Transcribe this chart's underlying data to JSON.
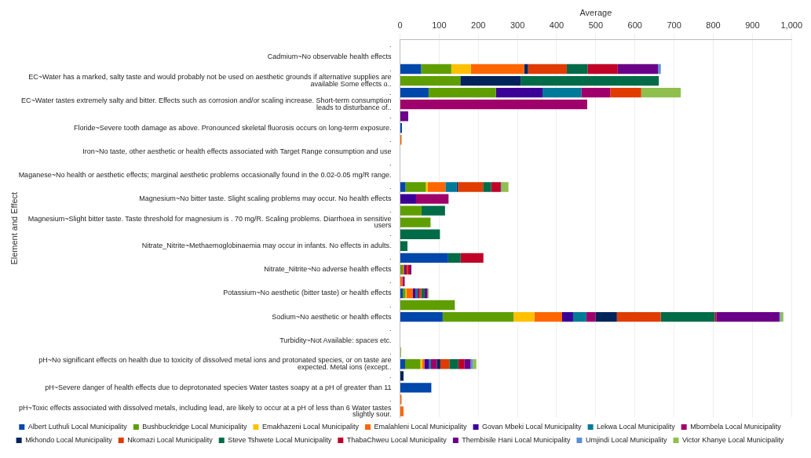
{
  "chart_data": {
    "type": "bar",
    "orientation": "horizontal",
    "stacked": true,
    "xlabel": "Average",
    "ylabel": "Element and Effect",
    "legend": "bottom",
    "grid": "x",
    "xlim": [
      0,
      1000
    ],
    "xticks": [
      0,
      100,
      200,
      300,
      400,
      500,
      600,
      700,
      800,
      900,
      {
        "value": 1000,
        "label": "1,000"
      }
    ],
    "categories": [
      ".",
      "Cadmium~No observable health effects",
      ".",
      "EC~Water has a marked, salty taste and would probably not be used on aesthetic grounds if alternative supplies are available Some effects o..",
      ".",
      "EC~Water tastes extremely salty and bitter. Effects such as corrosion and/or scaling increase. Short-term consumption leads to disturbance of..",
      ".",
      "Floride~Severe tooth damage as above. Pronounced skeletal fluorosis occurs on long-term exposure.",
      ".",
      "Iron~No taste, other aesthetic or health effects associated with Target Range consumption and use",
      ".",
      "Maganese~No health or aesthetic effects; marginal aesthetic problems occasionally found in the 0.02-0.05 mg/R range.",
      ".",
      "Magnesium~No bitter taste. Slight scaling problems may occur. No health effects",
      ".",
      "Magnesium~Slight bitter taste. Taste threshold for magnesium is . 70 mg/R. Scaling problems. Diarrhoea in sensitive users",
      ".",
      "Nitrate_Nitrite~Methaemoglobinaemia may occur in infants. No effects in adults.",
      ".",
      "Nitrate_Nitrite~No adverse health effects",
      ".",
      "Potassium~No aesthetic (bitter taste) or health effects",
      ".",
      "Sodium~No aesthetic or health effects",
      ".",
      "Turbidity~Not Available: spaces etc.",
      ".",
      "pH~No significant effects on health due to toxicity of dissolved metal ions and protonated species, or on taste are expected. Metal ions (except..",
      ".",
      "pH~Severe danger of health effects due to deprotonated species Water tastes soapy at a pH of greater than 11",
      ".",
      "pH~Toxic effects associated with dissolved metals, including lead, are likely to occur at a pH of less than 6 Water tastes slightly sour."
    ],
    "series": [
      {
        "name": "Albert Luthuli Local Municipality",
        "color": "#0047ab",
        "values": [
          null,
          null,
          54,
          null,
          73,
          null,
          null,
          5,
          null,
          null,
          null,
          null,
          14,
          null,
          null,
          null,
          null,
          null,
          123,
          null,
          null,
          7,
          null,
          109,
          null,
          null,
          null,
          13,
          null,
          80,
          null,
          null
        ]
      },
      {
        "name": "Bushbuckridge Local Municipality",
        "color": "#5f9e00",
        "values": [
          null,
          null,
          77,
          154,
          172,
          null,
          null,
          null,
          null,
          null,
          null,
          null,
          52,
          null,
          55,
          78,
          null,
          null,
          null,
          7,
          null,
          7,
          140,
          181,
          null,
          null,
          null,
          39,
          null,
          null,
          null,
          null
        ]
      },
      {
        "name": "Emakhazeni Local Municipality",
        "color": "#ffc000",
        "values": [
          null,
          null,
          50,
          null,
          null,
          null,
          null,
          null,
          null,
          null,
          null,
          null,
          5,
          null,
          null,
          null,
          null,
          null,
          null,
          null,
          null,
          3,
          null,
          53,
          null,
          null,
          null,
          5,
          null,
          null,
          null,
          null
        ]
      },
      {
        "name": "Emalahleni Local Municipality",
        "color": "#ff6600",
        "values": [
          null,
          null,
          136,
          null,
          null,
          null,
          null,
          null,
          4,
          null,
          null,
          null,
          45,
          null,
          null,
          null,
          null,
          null,
          null,
          3,
          6,
          16,
          null,
          71,
          null,
          null,
          null,
          5,
          null,
          null,
          4,
          9
        ]
      },
      {
        "name": "Govan Mbeki Local Municipality",
        "color": "#3b0096",
        "values": [
          null,
          null,
          null,
          null,
          119,
          null,
          null,
          null,
          null,
          null,
          null,
          null,
          null,
          41,
          null,
          null,
          null,
          null,
          null,
          3,
          null,
          7,
          null,
          28,
          null,
          null,
          null,
          12,
          null,
          null,
          null,
          null
        ]
      },
      {
        "name": "Lekwa Local Municipality",
        "color": "#007a99",
        "values": [
          null,
          null,
          null,
          null,
          99,
          null,
          null,
          null,
          null,
          null,
          null,
          null,
          29,
          null,
          null,
          null,
          null,
          null,
          null,
          null,
          null,
          5,
          null,
          34,
          null,
          null,
          null,
          5,
          null,
          null,
          null,
          null
        ]
      },
      {
        "name": "Mbombela Local Municipality",
        "color": "#a0006a",
        "values": [
          null,
          null,
          null,
          null,
          74,
          478,
          null,
          null,
          null,
          null,
          null,
          null,
          null,
          83,
          null,
          null,
          null,
          null,
          null,
          4,
          6,
          4,
          null,
          23,
          null,
          null,
          null,
          15,
          null,
          null,
          null,
          null
        ]
      },
      {
        "name": "Mkhondo Local Municipality",
        "color": "#00235a",
        "values": [
          null,
          null,
          10,
          155,
          null,
          null,
          null,
          null,
          null,
          null,
          null,
          null,
          3,
          null,
          null,
          null,
          null,
          null,
          null,
          null,
          null,
          null,
          null,
          55,
          null,
          null,
          null,
          9,
          9,
          null,
          null,
          null
        ]
      },
      {
        "name": "Nkomazi Local Municipality",
        "color": "#e03c00",
        "values": [
          null,
          null,
          99,
          null,
          79,
          null,
          null,
          null,
          null,
          null,
          null,
          null,
          64,
          null,
          null,
          null,
          null,
          null,
          null,
          4,
          null,
          5,
          null,
          112,
          null,
          null,
          null,
          23,
          null,
          null,
          null,
          null
        ]
      },
      {
        "name": "Steve Tshwete Local Municipality",
        "color": "#006b47",
        "values": [
          null,
          null,
          53,
          352,
          null,
          null,
          null,
          null,
          null,
          null,
          null,
          null,
          21,
          null,
          60,
          null,
          102,
          19,
          32,
          null,
          null,
          9,
          null,
          138,
          null,
          null,
          null,
          23,
          null,
          null,
          null,
          null
        ]
      },
      {
        "name": "ThabaChweu Local Municipality",
        "color": "#c00027",
        "values": [
          null,
          null,
          77,
          null,
          null,
          null,
          null,
          null,
          null,
          null,
          null,
          null,
          23,
          null,
          null,
          null,
          null,
          null,
          58,
          4,
          null,
          null,
          null,
          4,
          null,
          null,
          null,
          15,
          null,
          null,
          null,
          null
        ]
      },
      {
        "name": "Thembisile Hani Local Municipality",
        "color": "#6a0088",
        "values": [
          null,
          null,
          103,
          null,
          null,
          null,
          21,
          null,
          null,
          null,
          null,
          null,
          2,
          null,
          null,
          null,
          null,
          null,
          null,
          4,
          null,
          7,
          null,
          161,
          null,
          null,
          null,
          16,
          null,
          null,
          null,
          null
        ]
      },
      {
        "name": "Umjindi Local Municipality",
        "color": "#5b8fd6",
        "values": [
          null,
          null,
          7,
          null,
          null,
          null,
          null,
          null,
          null,
          null,
          null,
          null,
          null,
          null,
          null,
          null,
          null,
          null,
          null,
          null,
          null,
          null,
          null,
          3,
          null,
          null,
          null,
          6,
          null,
          null,
          null,
          null
        ]
      },
      {
        "name": "Victor Khanye Local Municipality",
        "color": "#8fbf4f",
        "values": [
          null,
          null,
          null,
          null,
          101,
          null,
          null,
          null,
          null,
          null,
          null,
          null,
          19,
          null,
          null,
          null,
          null,
          null,
          null,
          null,
          null,
          3,
          null,
          7,
          null,
          null,
          3,
          9,
          null,
          null,
          null,
          null
        ]
      }
    ]
  }
}
